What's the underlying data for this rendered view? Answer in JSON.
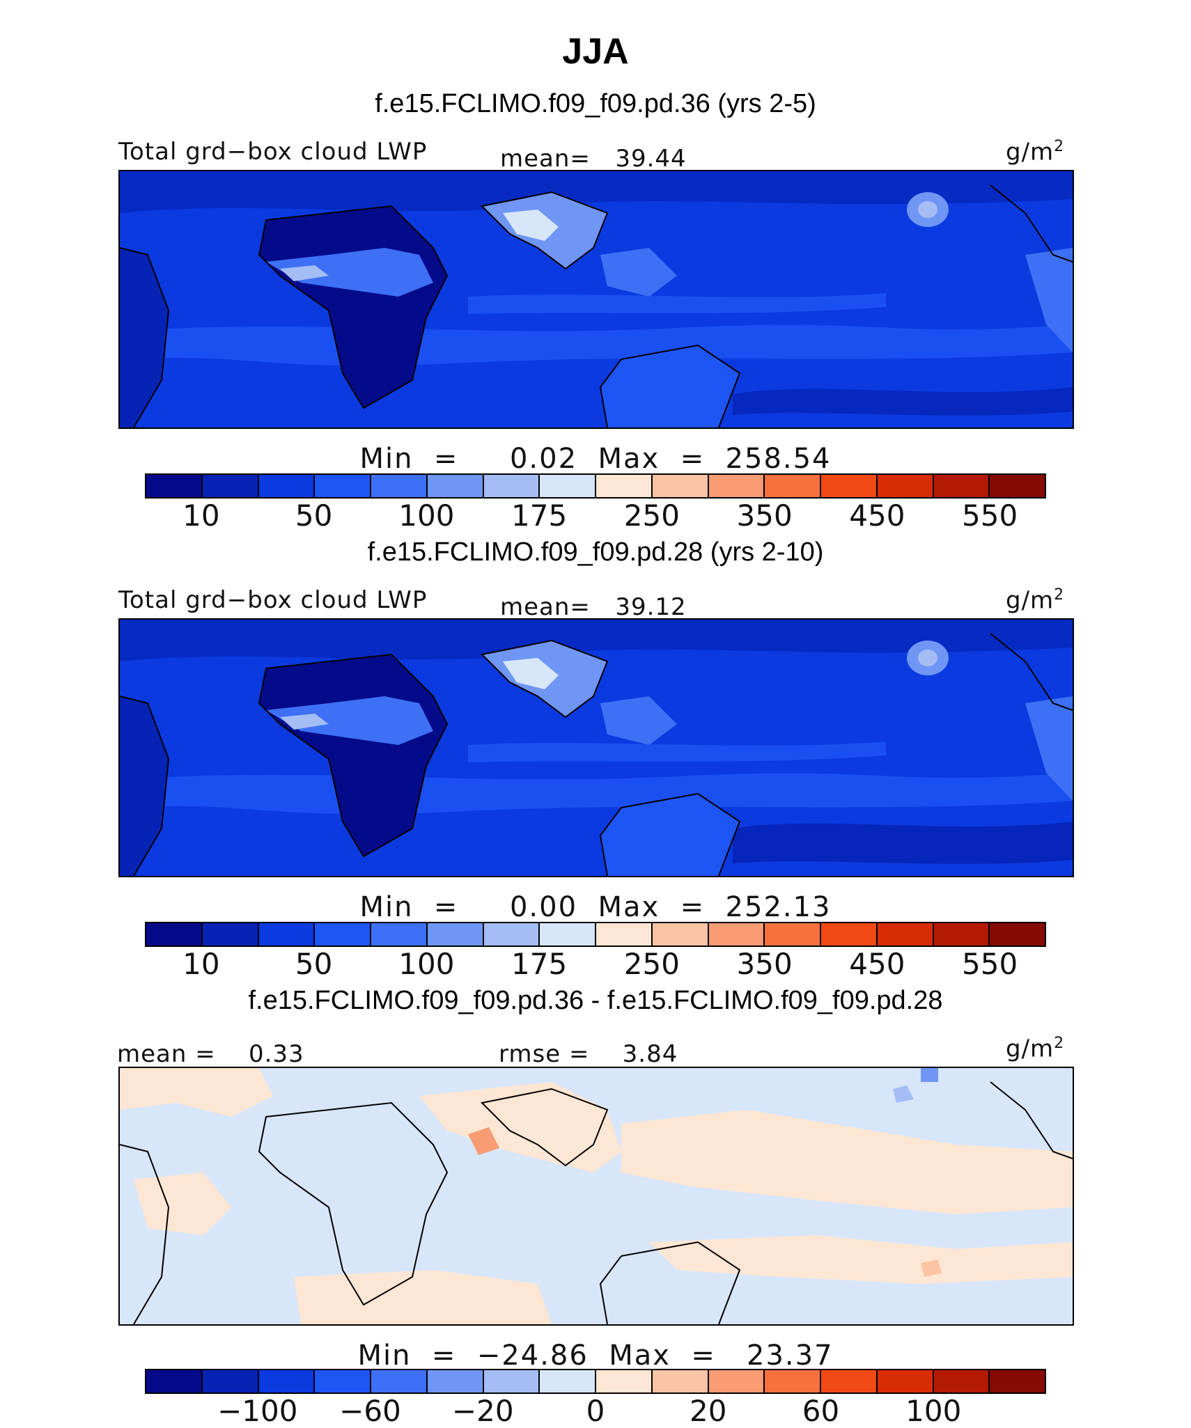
{
  "title": "JJA",
  "colors": {
    "palette": [
      "#040b8a",
      "#0524b6",
      "#0a3ae0",
      "#1e55f5",
      "#3d70f5",
      "#7096f5",
      "#a4bdf5",
      "#d8e6fa",
      "#fde6d3",
      "#fbc4a4",
      "#f89c74",
      "#f7713f",
      "#f24a14",
      "#d92c04",
      "#b51a04",
      "#840a02"
    ]
  },
  "panels": [
    {
      "title": "f.e15.FCLIMO.f09_f09.pd.36 (yrs 2-5)",
      "left_label": "Total grd−box cloud LWP",
      "center_label": "mean=   39.44",
      "units_label": "g/m",
      "units_sup": "2",
      "minmax": "Min  =     0.02  Max  =  258.54",
      "tick_labels": [
        "10",
        "50",
        "100",
        "175",
        "250",
        "350",
        "450",
        "550"
      ]
    },
    {
      "title": "f.e15.FCLIMO.f09_f09.pd.28 (yrs 2-10)",
      "left_label": "Total grd−box cloud LWP",
      "center_label": "mean=   39.12",
      "units_label": "g/m",
      "units_sup": "2",
      "minmax": "Min  =     0.00  Max  =  252.13",
      "tick_labels": [
        "10",
        "50",
        "100",
        "175",
        "250",
        "350",
        "450",
        "550"
      ]
    },
    {
      "title": "f.e15.FCLIMO.f09_f09.pd.36 - f.e15.FCLIMO.f09_f09.pd.28",
      "left_label": "mean =    0.33",
      "center_label": "rmse =    3.84",
      "units_label": "g/m",
      "units_sup": "2",
      "minmax": "Min  =  −24.86  Max  =   23.37",
      "tick_labels": [
        "−100",
        "−60",
        "−20",
        "0",
        "20",
        "60",
        "100"
      ]
    }
  ],
  "chart_data": [
    {
      "type": "heatmap",
      "title": "f.e15.FCLIMO.f09_f09.pd.36 (yrs 2-5)",
      "variable": "Total grd-box cloud LWP",
      "units": "g/m2",
      "mean": 39.44,
      "min": 0.02,
      "max": 258.54,
      "colorbar_ticks": [
        10,
        50,
        100,
        175,
        250,
        350,
        450,
        550
      ]
    },
    {
      "type": "heatmap",
      "title": "f.e15.FCLIMO.f09_f09.pd.28 (yrs 2-10)",
      "variable": "Total grd-box cloud LWP",
      "units": "g/m2",
      "mean": 39.12,
      "min": 0.0,
      "max": 252.13,
      "colorbar_ticks": [
        10,
        50,
        100,
        175,
        250,
        350,
        450,
        550
      ]
    },
    {
      "type": "heatmap",
      "title": "f.e15.FCLIMO.f09_f09.pd.36 - f.e15.FCLIMO.f09_f09.pd.28",
      "units": "g/m2",
      "mean": 0.33,
      "rmse": 3.84,
      "min": -24.86,
      "max": 23.37,
      "colorbar_ticks": [
        -100,
        -60,
        -20,
        0,
        20,
        60,
        100
      ]
    }
  ]
}
